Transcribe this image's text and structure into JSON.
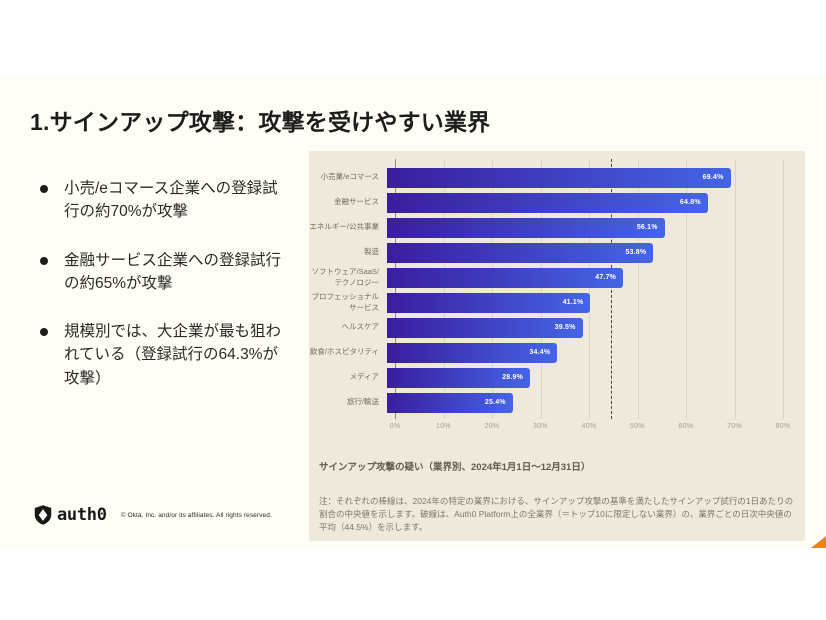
{
  "slide": {
    "title": "1.サインアップ攻撃：攻撃を受けやすい業界",
    "bullets": [
      "小売/eコマース企業への登録試行の約70%が攻撃",
      "金融サービス企業への登録試行の約65%が攻撃",
      "規模別では、大企業が最も狙われている（登録試行の64.3%が攻撃）"
    ],
    "footer": {
      "logo_text": "auth0",
      "copyright": "© Okta, Inc. and/or its affiliates. All rights reserved."
    }
  },
  "chart_data": {
    "type": "bar",
    "orientation": "horizontal",
    "title": "サインアップ攻撃の疑い（業界別、2024年1月1日～12月31日）",
    "note": "注：それぞれの棒線は、2024年の特定の業界における、サインアップ攻撃の基準を満たしたサインアップ試行の1日あたりの割合の中央値を示します。破線は、Auth0 Platform上の全業界（＝トップ10に限定しない業界）の、業界ごとの日次中央値の平均（44.5%）を示します。",
    "categories": [
      "小売業/eコマース",
      "金融サービス",
      "エネルギー/公共事業",
      "製造",
      "ソフトウェア/SaaS/\nテクノロジー",
      "プロフェッショナル\nサービス",
      "ヘルスケア",
      "飲食/ホスピタリティ",
      "メディア",
      "旅行/輸送"
    ],
    "values": [
      69.4,
      64.8,
      56.1,
      53.8,
      47.7,
      41.1,
      39.5,
      34.4,
      28.9,
      25.4
    ],
    "x_ticks": [
      "0%",
      "10%",
      "20%",
      "30%",
      "40%",
      "50%",
      "60%",
      "70%",
      "80%"
    ],
    "xlim": [
      0,
      80
    ],
    "grid": true,
    "legend": false,
    "reference_line": {
      "value": 44.5,
      "meaning": "全業界の日次中央値の平均"
    },
    "colors": {
      "bar_start": "#3A1D9E",
      "bar_end": "#4465E6",
      "panel_bg": "#EFE9DC",
      "slide_bg": "#FFFEF6",
      "accent_triangle": "#E8841A"
    }
  }
}
